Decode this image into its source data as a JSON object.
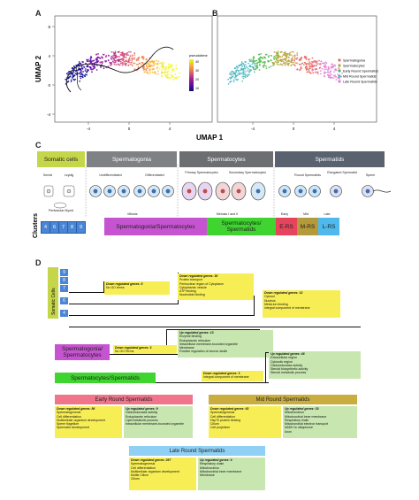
{
  "panel_labels": {
    "a": "A",
    "b": "B",
    "c": "C",
    "d": "D"
  },
  "umap": {
    "ylabel": "UMAP 2",
    "xlabel": "UMAP 1",
    "x_ticks": [
      "-4",
      "0",
      "4"
    ],
    "y_ticks": [
      "8",
      "4",
      "0",
      "-4"
    ],
    "colorbar_title": "pseudotime",
    "colorbar_ticks": [
      "10",
      "20",
      "30",
      "40"
    ],
    "legend": [
      {
        "label": "Spermatogonia",
        "color": "#e8675f"
      },
      {
        "label": "Spermatocytes",
        "color": "#b8a43a"
      },
      {
        "label": "Early Round Spermatids",
        "color": "#4cb848"
      },
      {
        "label": "Mid Round Spermatids",
        "color": "#4ab6c0"
      },
      {
        "label": "Late Round Spermatids",
        "color": "#e27ed6"
      }
    ]
  },
  "panel_c": {
    "stages": [
      {
        "label": "Somatic cells",
        "color": "#c5d64a",
        "text_color": "#222"
      },
      {
        "label": "Spermatogonia",
        "color": "#808184",
        "text_color": "#fff"
      },
      {
        "label": "Spermatocytes",
        "color": "#6d6e71",
        "text_color": "#fff"
      },
      {
        "label": "Spermatids",
        "color": "#5a6270",
        "text_color": "#fff"
      }
    ],
    "sub_labels": {
      "sertoli": "Sertoli",
      "leydig": "Leydig",
      "peritubular": "Peritubular Myoid",
      "undiff": "Undifferentiated",
      "diff": "Differentiated",
      "primary": "Primary Spermatocytes",
      "secondary": "Secondary Spermatocytes",
      "round": "Round Spermatids",
      "elongated": "Elongated Spermatid",
      "sperm": "Sperm",
      "mitosis": "Mitosis",
      "meiosis": "Meiosis I and II",
      "early": "Early",
      "mid": "Mid",
      "late": "Late"
    },
    "clusters_label": "Clusters",
    "clusters": [
      "4",
      "6",
      "7",
      "8",
      "9"
    ],
    "cluster_bars": [
      {
        "label": "Spermatogonia/Spermatocytes",
        "color": "#c654d0"
      },
      {
        "label": "Spermatocytes/ Spermatids",
        "color": "#3fd42f"
      },
      {
        "label": "E-RS",
        "color": "#e5445c"
      },
      {
        "label": "M-RS",
        "color": "#b49a3a"
      },
      {
        "label": "L-RS",
        "color": "#4fb9ee"
      }
    ]
  },
  "panel_d": {
    "somatic_label": "Somatic Cells",
    "somatic_clusters": [
      "9",
      "8",
      "7",
      "6",
      "4"
    ],
    "sg_sc_label": "Spermatogonia/ Spermatocytes",
    "sc_st_label": "Spermatocytes/Spermatids",
    "early_label": "Early Round Spermatids",
    "mid_label": "Mid Round Spermatids",
    "late_label": "Late Round Spermatids",
    "boxes": {
      "som_down8": {
        "title": "Down regulated genes: 8",
        "items": [
          "No GO terms"
        ]
      },
      "som_down30": {
        "title": "Down regulated genes: 30",
        "items": [
          "Protein transport",
          "Perinuclear region of Cytoplasm",
          "Cytoplasmic vesicle",
          "ATP binding",
          "Nucleotide binding"
        ]
      },
      "som_down13": {
        "title": "Down regulated genes: 13",
        "items": [
          "Cytosol",
          "Nucleus",
          "Metal-ion binding",
          "Integral component of membrane"
        ]
      },
      "sg_down3": {
        "title": "Down regulated genes: 3",
        "items": [
          "No GO Terms"
        ]
      },
      "sg_up13": {
        "title": "Up regulated genes: 13",
        "items": [
          "Enzyme binding",
          "Endoplasmic reticulum",
          "Intracellular membrane-bounded organelle",
          "Membrane",
          "Positive regulation of neuron death"
        ]
      },
      "sc_down3": {
        "title": "Down regulated genes: 3",
        "items": [
          "Integral component of membrane"
        ]
      },
      "sc_up46": {
        "title": "Up regulated genes: 46",
        "items": [
          "Extracellular region",
          "Cytosolic region",
          "Oxidoreductase activity",
          "Steroid biosynthetic activity",
          "Steroid metabolic process"
        ]
      },
      "e_down86": {
        "title": "Down regulated genes: 86",
        "items": [
          "Spermatogenesis",
          "Cell differentiation",
          "Multicellular organism development",
          "Sperm flagellum",
          "Spermatid development"
        ]
      },
      "e_up9": {
        "title": "Up regulated genes: 9",
        "items": [
          "Oxidoreductase activity",
          "Endoplasmic reticulum",
          "Lipid metabolic process",
          "Intracellular membrane-bounded organelle"
        ]
      },
      "m_down63": {
        "title": "Down regulated genes: 63",
        "items": [
          "Spermatogenesis",
          "Cell differentiation",
          "Hsp70 protein binding",
          "Cilium",
          "Cell projection"
        ]
      },
      "m_up33": {
        "title": "Up regulated genes: 33",
        "items": [
          "Mitochondrion",
          "Mitochondrial inner membrane",
          "Respiratory chain",
          "Mitochondrial electron transport",
          "NADH to ubiquinone",
          "Axon"
        ]
      },
      "l_down297": {
        "title": "Down regulated genes: 297",
        "items": [
          "Spermatogenesis",
          "Cell differentiation",
          "Multicellular organism development",
          "Motile Cilium",
          "Cilium"
        ]
      },
      "l_up6": {
        "title": "Up regulated genes: 6",
        "items": [
          "Respiratory chain",
          "Mitochondrion",
          "Mitochondrial inner membrane",
          "Membrane"
        ]
      }
    }
  }
}
